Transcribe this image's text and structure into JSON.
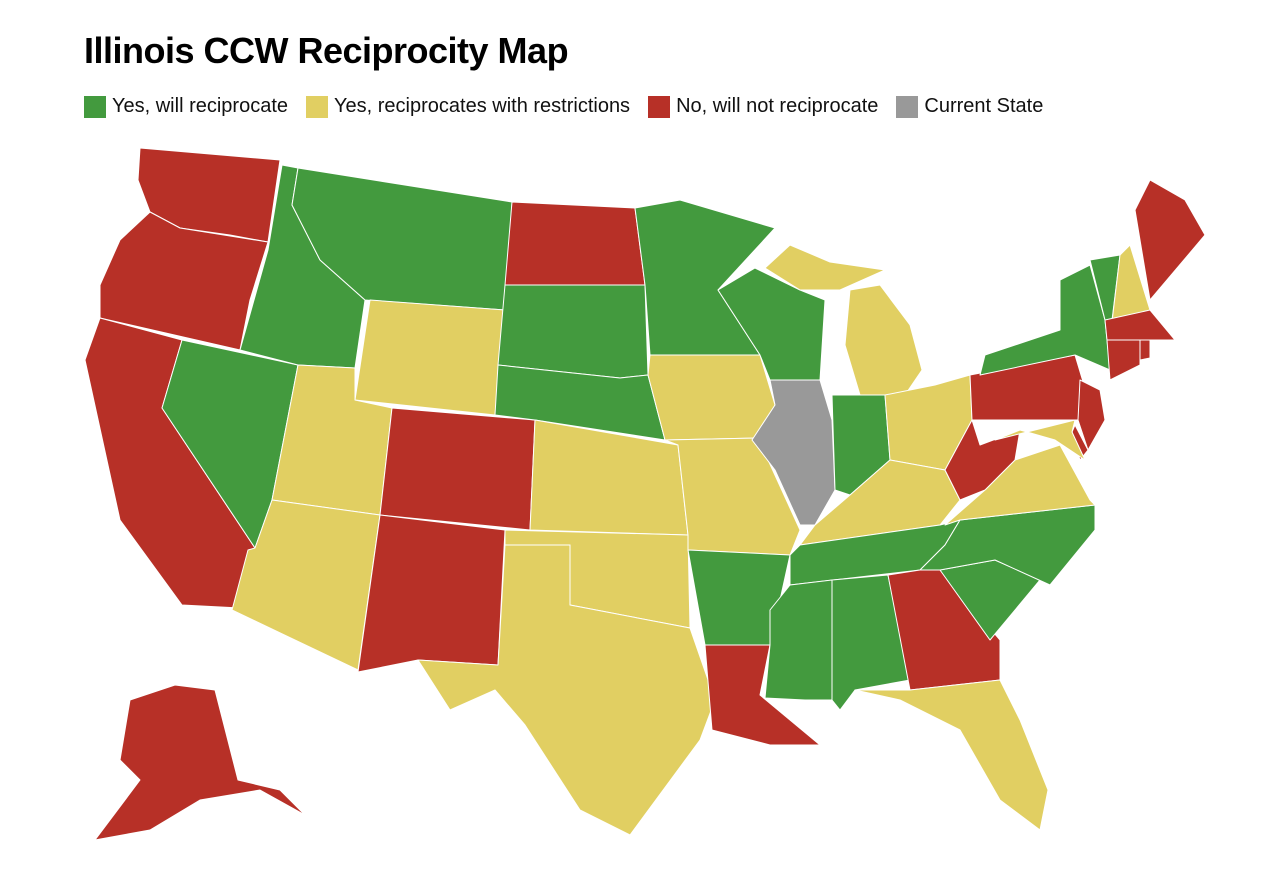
{
  "title": "Illinois CCW Reciprocity Map",
  "legend": [
    {
      "label": "Yes, will reciprocate",
      "color": "#439a3e"
    },
    {
      "label": "Yes, reciprocates with restrictions",
      "color": "#e1cf62"
    },
    {
      "label": "No, will not reciprocate",
      "color": "#b73027"
    },
    {
      "label": "Current State",
      "color": "#999999"
    }
  ],
  "regions": [
    2,
    2,
    2,
    0,
    0,
    0,
    1,
    1,
    2,
    1,
    2,
    2,
    0,
    0,
    1,
    1,
    1,
    0,
    1,
    1,
    0,
    2,
    0,
    3,
    1,
    1,
    0,
    1,
    1,
    0,
    0,
    0,
    2,
    1,
    0,
    0,
    1,
    2,
    2,
    0,
    0,
    1,
    2,
    2,
    2,
    2,
    2,
    2,
    1,
    2
  ]
}
